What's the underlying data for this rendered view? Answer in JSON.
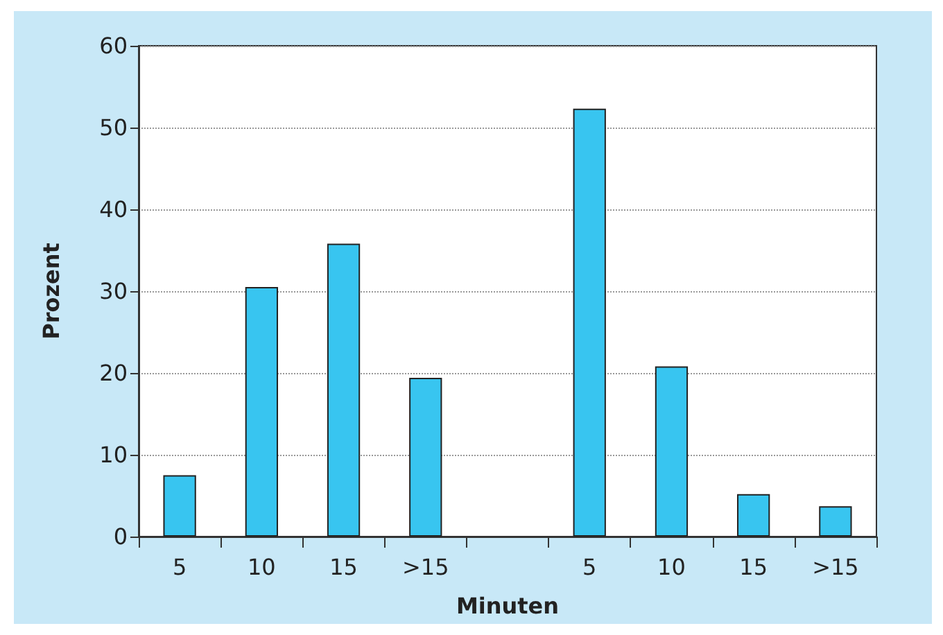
{
  "chart_data": {
    "type": "bar",
    "xlabel": "Minuten",
    "ylabel": "Prozent",
    "categories": [
      "5",
      "10",
      "15",
      ">15",
      null,
      "5",
      "10",
      "15",
      ">15"
    ],
    "values": [
      7.5,
      30.5,
      35.8,
      19.4,
      null,
      52.3,
      20.8,
      5.2,
      3.7
    ],
    "color": "#38c5f0",
    "ylim": [
      0,
      60
    ],
    "yticks": [
      0,
      10,
      20,
      30,
      40,
      50,
      60
    ],
    "grid": "y"
  }
}
